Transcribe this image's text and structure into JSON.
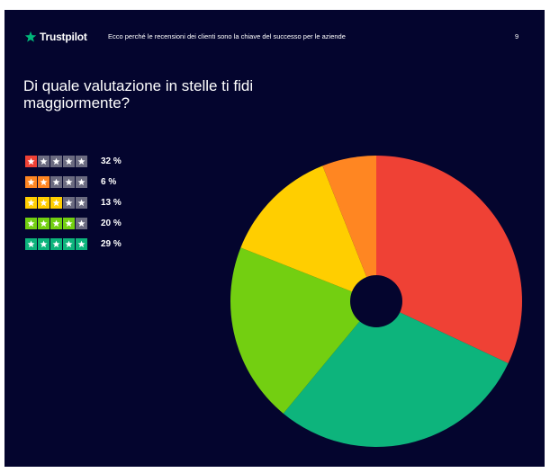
{
  "header": {
    "brand_name": "Trustpilot",
    "brand_icon": "star-icon",
    "brand_color": "#00b67a",
    "subtitle": "Ecco perché le recensioni dei clienti sono la chiave del successo per le aziende",
    "page_number": "9"
  },
  "question": "Di quale valutazione in stelle ti fidi maggiormente?",
  "colors": {
    "background": "#04052e",
    "inactive_star": "#6b6b80"
  },
  "legend": [
    {
      "stars": 1,
      "value_label": "32 %",
      "color": "#ef4135"
    },
    {
      "stars": 2,
      "value_label": "6 %",
      "color": "#ff8622"
    },
    {
      "stars": 3,
      "value_label": "13 %",
      "color": "#ffce00"
    },
    {
      "stars": 4,
      "value_label": "20 %",
      "color": "#73cf11"
    },
    {
      "stars": 5,
      "value_label": "29 %",
      "color": "#0db47c"
    }
  ],
  "chart_data": {
    "type": "pie",
    "title": "Di quale valutazione in stelle ti fidi maggiormente?",
    "start_angle_deg": 0,
    "direction": "clockwise",
    "donut_hole": true,
    "slices": [
      {
        "label": "1 stella",
        "value": 32,
        "color": "#ef4135"
      },
      {
        "label": "5 stelle",
        "value": 29,
        "color": "#0db47c"
      },
      {
        "label": "4 stelle",
        "value": 20,
        "color": "#73cf11"
      },
      {
        "label": "3 stelle",
        "value": 13,
        "color": "#ffce00"
      },
      {
        "label": "2 stelle",
        "value": 6,
        "color": "#ff8622"
      }
    ]
  }
}
